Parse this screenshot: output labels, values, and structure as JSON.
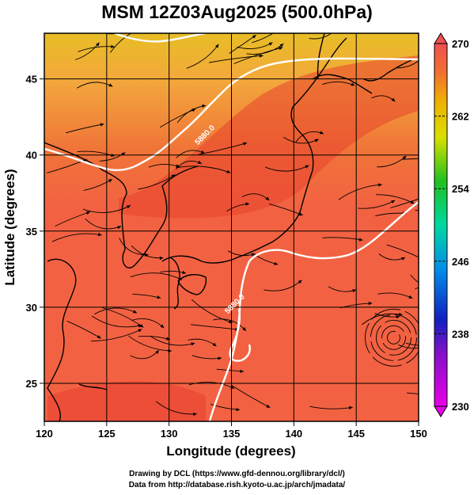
{
  "title": "MSM 12Z03Aug2025 (500.0hPa)",
  "credits": {
    "line1": "Drawing by DCL (https://www.gfd-dennou.org/library/dcl/)",
    "line2": "Data from http://database.rish.kyoto-u.ac.jp/arch/jmadata/"
  },
  "map": {
    "xlabel": "Longitude (degrees)",
    "ylabel": "Latitude  (degrees)",
    "lon_range": [
      120,
      150
    ],
    "lat_range": [
      22.5,
      48
    ],
    "lon_ticks": [
      120,
      125,
      130,
      135,
      140,
      145,
      150
    ],
    "lat_ticks": [
      25,
      30,
      35,
      40,
      45
    ],
    "contour_labels": [
      {
        "text": "5880.0",
        "lon": 133,
        "lat": 41.2
      },
      {
        "text": "5880.0",
        "lon": 135.4,
        "lat": 30.1
      }
    ],
    "colorbar": {
      "range": [
        230,
        270
      ],
      "tick_labels": [
        "270",
        "262",
        "254",
        "246",
        "238",
        "230"
      ],
      "colors": [
        "#e800e8",
        "#1020c0",
        "#0090e8",
        "#00d8a0",
        "#20c020",
        "#d8e000",
        "#f0b000",
        "#f07030",
        "#f05050"
      ]
    },
    "field_colors": {
      "warm": "#f26242",
      "hot": "#e83c2a",
      "north": "#f3a83c",
      "far_north": "#e8bd26",
      "land": "#e85032"
    }
  }
}
